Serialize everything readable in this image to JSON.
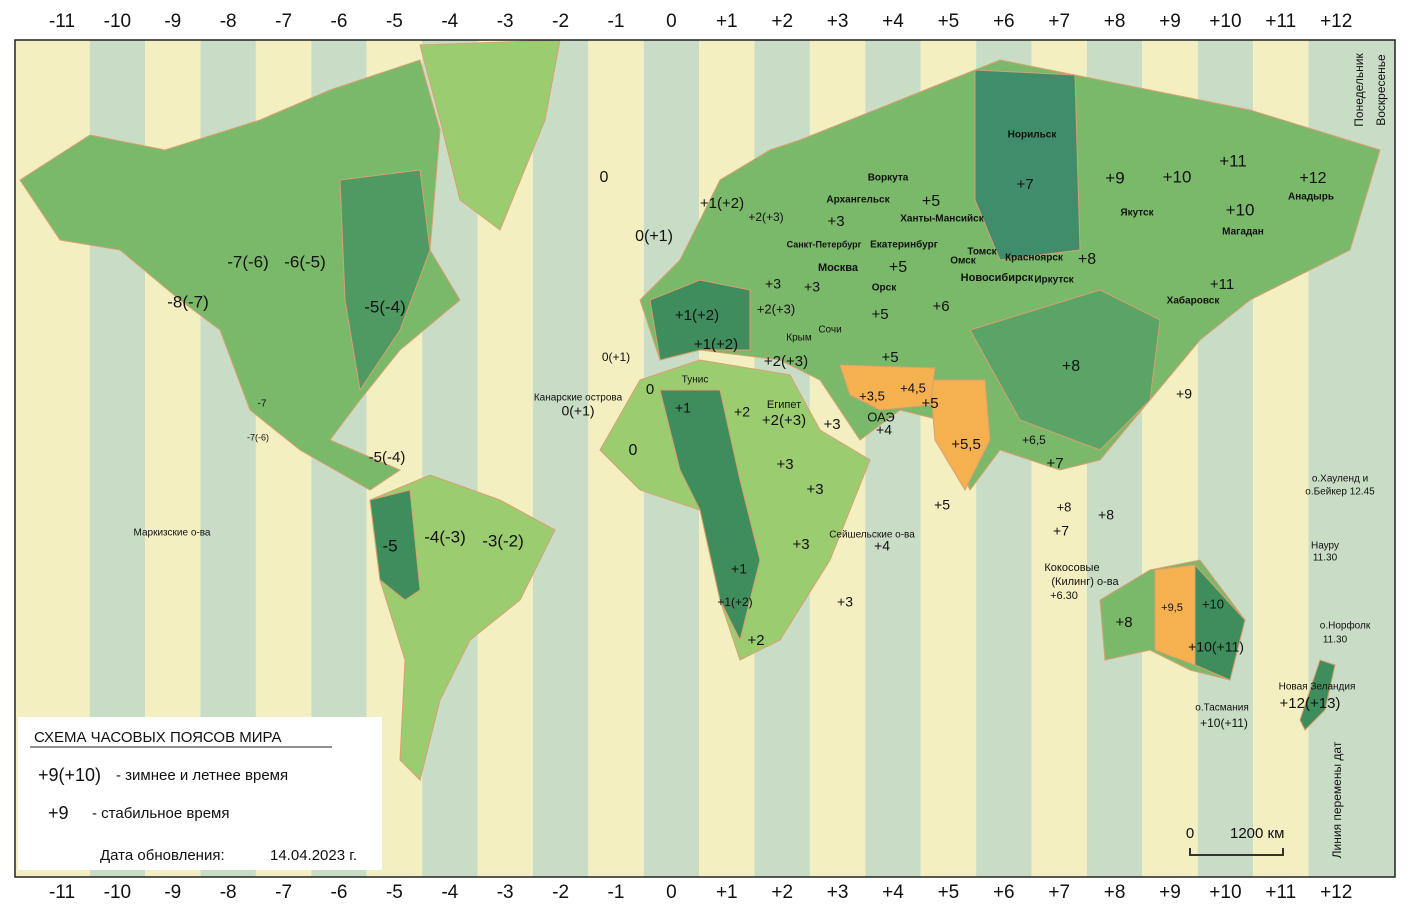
{
  "title_zones": [
    "-11",
    "-10",
    "-9",
    "-8",
    "-7",
    "-6",
    "-5",
    "-4",
    "-3",
    "-2",
    "-1",
    "0",
    "+1",
    "+2",
    "+3",
    "+4",
    "+5",
    "+6",
    "+7",
    "+8",
    "+9",
    "+10",
    "+11",
    "+12"
  ],
  "labels": [
    "-8(-7)",
    "-7(-6)",
    "-6(-5)",
    "-5(-4)",
    "-7",
    "-7(-6)",
    "-5(-4)",
    "-5",
    "-4(-3)",
    "-3(-2)",
    "0",
    "0(+1)",
    "0(+1)",
    "0",
    "0",
    "Канарские острова",
    "0(+1)",
    "+1(+2)",
    "+2(+3)",
    "+1(+2)",
    "+1(+2)",
    "Тунис",
    "+1",
    "+2",
    "Египет",
    "+2(+3)",
    "+2(+3)",
    "Крым",
    "Сочи",
    "+3",
    "+3",
    "+3",
    "+3",
    "+1",
    "+1(+2)",
    "+2",
    "+3",
    "Сейшельские о-ва",
    "+4",
    "+3,5",
    "+4,5",
    "ОАЭ",
    "+4",
    "+5",
    "+5,5",
    "+6,5",
    "+5",
    "+7",
    "+8",
    "+7",
    "+8",
    "Кокосовые",
    "(Килинг) о-ва",
    "+6.30",
    "+8",
    "+9,5",
    "+10",
    "+10(+11)",
    "о.Тасмания",
    "+10(+11)",
    "Новая Зеландия",
    "+12(+13)",
    "о.Норфолк",
    "11.30",
    "Науру",
    "11.30",
    "о.Хауленд и",
    "о.Бейкер 12.45",
    "Маркизские о-ва",
    "+2(+3)",
    "+3",
    "+3",
    "Москва",
    "Санкт-Петербург",
    "Архангельск",
    "+3",
    "Воркута",
    "+5",
    "Ханты-Мансийск",
    "Екатеринбург",
    "+5",
    "Орск",
    "+5",
    "+6",
    "+5",
    "Омск",
    "Томск",
    "Новосибирск",
    "Красноярск",
    "Иркутск",
    "+8",
    "Норильск",
    "+7",
    "+9",
    "Якутск",
    "+10",
    "+11",
    "+10",
    "Магадан",
    "+12",
    "Анадырь",
    "+11",
    "Хабаровск",
    "+8",
    "+9"
  ],
  "side_labels": [
    "Понедельник",
    "Воскресенье",
    "Линия перемены дат"
  ],
  "legend": {
    "title": "СХЕМА  ЧАСОВЫХ ПОЯСОВ  МИРА",
    "seasonal_key": "+9(+10)",
    "seasonal_text": "- зимнее и летнее время",
    "stable_key": "+9",
    "stable_text": "- стабильное время",
    "date_label": "Дата обновления:",
    "date": "14.04.2023 г."
  },
  "scale": {
    "start": "0",
    "end": "1200 км"
  }
}
